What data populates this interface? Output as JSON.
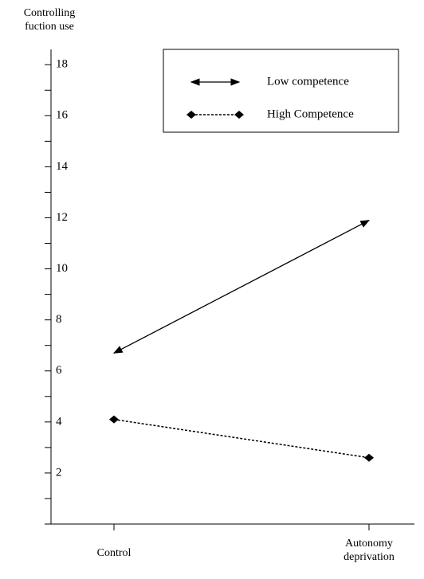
{
  "chart_data": {
    "type": "line",
    "y_label": "Controlling fuction use",
    "categories": [
      "Control",
      "Autonomy deprivation"
    ],
    "series": [
      {
        "name": "Low competence",
        "color": "#000000",
        "style": "arrow",
        "values": [
          6.7,
          11.9
        ]
      },
      {
        "name": "High Competence",
        "color": "#000000",
        "style": "dotted-diamond",
        "values": [
          4.1,
          2.6
        ]
      }
    ],
    "ylim": [
      0,
      18.6
    ],
    "yticks": [
      2,
      4,
      6,
      8,
      10,
      12,
      14,
      16,
      18
    ],
    "yminor": [
      1,
      3,
      5,
      7,
      9,
      11,
      13,
      15,
      17
    ],
    "legend": "top-right"
  }
}
